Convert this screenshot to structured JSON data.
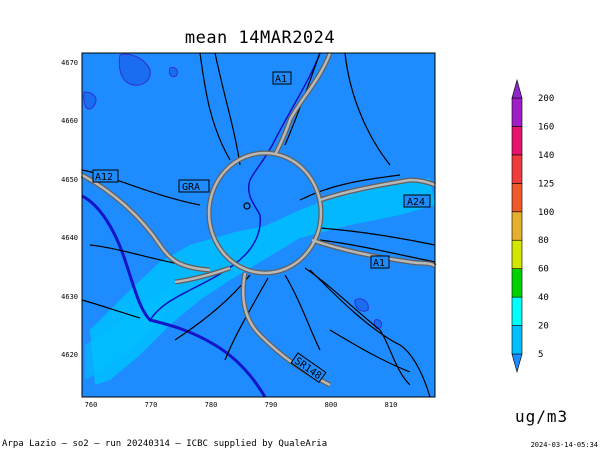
{
  "title": "mean 14MAR2024",
  "footer_left": "Arpa Lazio — so2 — run 20240314 — ICBC supplied by QualeAria",
  "footer_right": "2024-03-14-05:34",
  "unit": "ug/m3",
  "map": {
    "x_ticks": [
      "760",
      "770",
      "780",
      "790",
      "800",
      "810"
    ],
    "y_ticks": [
      "4670",
      "4660",
      "4650",
      "4640",
      "4630",
      "4620"
    ],
    "road_labels": [
      "A1",
      "A12",
      "GRA",
      "A24",
      "A1",
      "SR148"
    ]
  },
  "legend": {
    "levels": [
      "5",
      "20",
      "40",
      "60",
      "80",
      "100",
      "125",
      "140",
      "160",
      "200"
    ],
    "colors": [
      "#1e8cff",
      "#00bfff",
      "#00ffff",
      "#00d200",
      "#d2e600",
      "#e6af2d",
      "#f05a28",
      "#f03c3c",
      "#e6146e",
      "#a01ec8",
      "#8c28c8"
    ]
  },
  "colors": {
    "background_field": "#1e8cff",
    "coast": "#1414c8",
    "roads": "#000000"
  }
}
